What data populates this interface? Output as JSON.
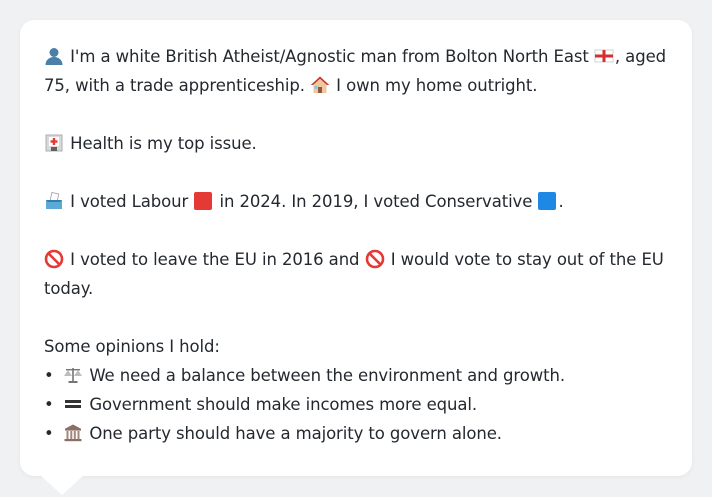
{
  "persona": {
    "intro_line1_a": "I'm a white British Atheist/Agnostic man from Bolton North East",
    "intro_line1_b": ", aged",
    "intro_line2_a": "75, with a trade apprenticeship.",
    "intro_line2_b": "I own my home outright.",
    "health": "Health is my top issue.",
    "vote_a": "I voted Labour",
    "vote_b": "in 2024. In 2019, I voted Conservative",
    "vote_c": ".",
    "eu_a": "I voted to leave the EU in 2016 and",
    "eu_b": "I would vote to stay out of the EU",
    "eu_c": "today.",
    "opinions_heading": "Some opinions I hold:",
    "opinions": [
      "We need a balance between the environment and growth.",
      "Government should make incomes more equal.",
      "One party should have a majority to govern alone."
    ]
  },
  "icons": {
    "person": "person-silhouette-icon",
    "flag": "england-flag-icon",
    "house": "house-icon",
    "hospital": "hospital-icon",
    "ballot": "ballot-box-icon",
    "labour": "red-square-icon",
    "conservative": "blue-square-icon",
    "prohibited": "prohibited-icon",
    "scales": "balance-scale-icon",
    "equals": "equals-icon",
    "classical": "classical-building-icon"
  },
  "colors": {
    "labour_red": "#e53935",
    "conservative_blue": "#1e88e5",
    "text": "#24292f",
    "card_bg": "#ffffff",
    "page_bg": "#f0f1f3"
  }
}
